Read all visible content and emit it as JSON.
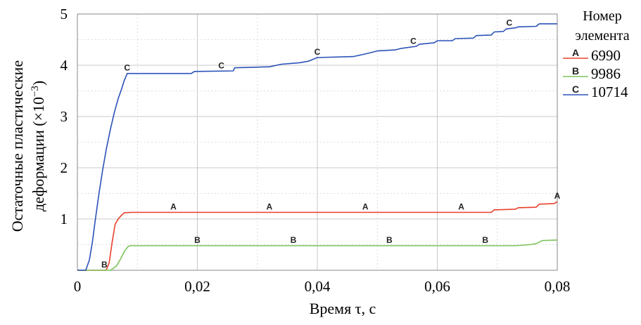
{
  "chart_data": {
    "type": "line",
    "title": "",
    "xlabel": "Время τ, с",
    "ylabel_line1": "Остаточные пластические",
    "ylabel_line2": "деформации (×10",
    "ylabel_exp": "−3",
    "ylabel_close": ")",
    "xlim": [
      0,
      0.08
    ],
    "ylim": [
      0,
      5
    ],
    "xticks": [
      0,
      0.02,
      0.04,
      0.06,
      0.08
    ],
    "xtick_labels": [
      "0",
      "0,02",
      "0,04",
      "0,06",
      "0,08"
    ],
    "yticks": [
      1,
      2,
      3,
      4,
      5
    ],
    "ytick_labels": [
      "1",
      "2",
      "3",
      "4",
      "5"
    ],
    "grid": true,
    "legend": {
      "title_line1": "Номер",
      "title_line2": "элемента",
      "placement": "right"
    },
    "series": [
      {
        "marker": "A",
        "name": "6990",
        "color": "#e8402a",
        "points": [
          [
            0,
            0
          ],
          [
            0.0048,
            0
          ],
          [
            0.0053,
            0.15
          ],
          [
            0.0058,
            0.55
          ],
          [
            0.0063,
            0.9
          ],
          [
            0.0068,
            1.0
          ],
          [
            0.0074,
            1.08
          ],
          [
            0.0078,
            1.12
          ],
          [
            0.009,
            1.13
          ],
          [
            0.069,
            1.13
          ],
          [
            0.0695,
            1.18
          ],
          [
            0.073,
            1.19
          ],
          [
            0.0735,
            1.22
          ],
          [
            0.0765,
            1.23
          ],
          [
            0.077,
            1.29
          ],
          [
            0.0795,
            1.3
          ],
          [
            0.08,
            1.34
          ]
        ],
        "label_x": [
          0.016,
          0.032,
          0.048,
          0.064,
          0.08
        ]
      },
      {
        "marker": "B",
        "name": "9986",
        "color": "#7cc35a",
        "points": [
          [
            0,
            0
          ],
          [
            0.0055,
            0
          ],
          [
            0.0065,
            0.08
          ],
          [
            0.0072,
            0.22
          ],
          [
            0.0079,
            0.38
          ],
          [
            0.0085,
            0.47
          ],
          [
            0.009,
            0.48
          ],
          [
            0.073,
            0.48
          ],
          [
            0.0755,
            0.5
          ],
          [
            0.0765,
            0.52
          ],
          [
            0.0775,
            0.58
          ],
          [
            0.08,
            0.59
          ]
        ],
        "label_x": [
          0.0045,
          0.02,
          0.036,
          0.052,
          0.068
        ]
      },
      {
        "marker": "C",
        "name": "10714",
        "color": "#2a52b8",
        "points": [
          [
            0,
            0
          ],
          [
            0.0014,
            0
          ],
          [
            0.002,
            0.2
          ],
          [
            0.0025,
            0.55
          ],
          [
            0.003,
            1.0
          ],
          [
            0.0036,
            1.5
          ],
          [
            0.0042,
            1.95
          ],
          [
            0.0048,
            2.35
          ],
          [
            0.0055,
            2.75
          ],
          [
            0.0062,
            3.1
          ],
          [
            0.0068,
            3.35
          ],
          [
            0.0074,
            3.55
          ],
          [
            0.0078,
            3.7
          ],
          [
            0.0083,
            3.84
          ],
          [
            0.019,
            3.84
          ],
          [
            0.0195,
            3.88
          ],
          [
            0.026,
            3.89
          ],
          [
            0.0262,
            3.95
          ],
          [
            0.032,
            3.97
          ],
          [
            0.034,
            4.02
          ],
          [
            0.037,
            4.05
          ],
          [
            0.0385,
            4.08
          ],
          [
            0.04,
            4.15
          ],
          [
            0.046,
            4.17
          ],
          [
            0.048,
            4.22
          ],
          [
            0.05,
            4.28
          ],
          [
            0.053,
            4.3
          ],
          [
            0.054,
            4.33
          ],
          [
            0.0565,
            4.37
          ],
          [
            0.057,
            4.41
          ],
          [
            0.0595,
            4.44
          ],
          [
            0.06,
            4.48
          ],
          [
            0.0625,
            4.48
          ],
          [
            0.063,
            4.52
          ],
          [
            0.066,
            4.53
          ],
          [
            0.0665,
            4.58
          ],
          [
            0.069,
            4.59
          ],
          [
            0.0695,
            4.65
          ],
          [
            0.071,
            4.66
          ],
          [
            0.0715,
            4.71
          ],
          [
            0.073,
            4.73
          ],
          [
            0.0735,
            4.75
          ],
          [
            0.0765,
            4.76
          ],
          [
            0.077,
            4.81
          ],
          [
            0.08,
            4.81
          ]
        ],
        "label_x": [
          0.0083,
          0.024,
          0.04,
          0.056,
          0.072
        ]
      }
    ]
  }
}
